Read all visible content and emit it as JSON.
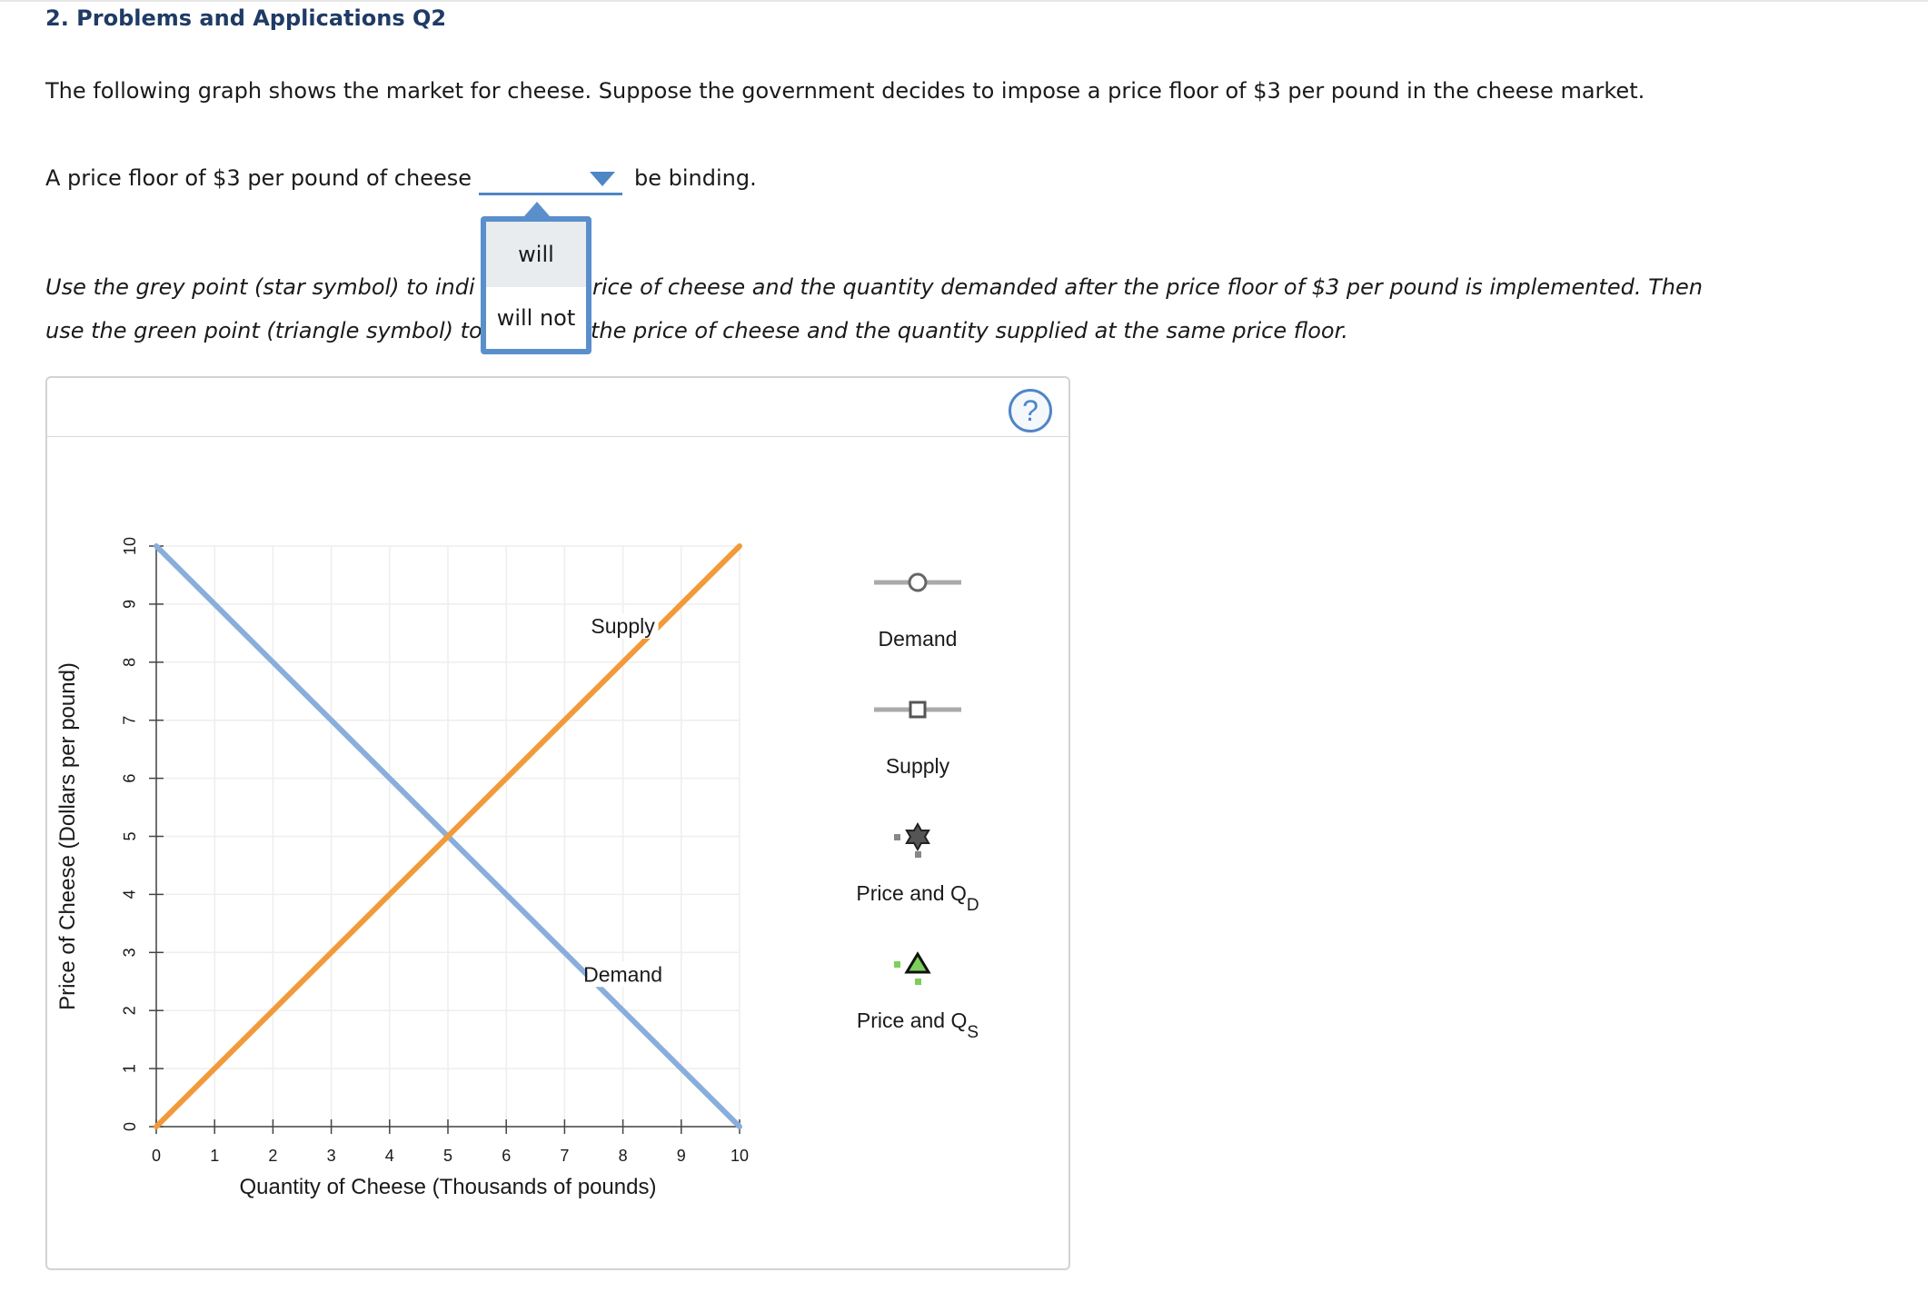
{
  "heading": "2. Problems and Applications Q2",
  "intro": "The following graph shows the market for cheese. Suppose the government decides to impose a price floor of $3 per pound in the cheese market.",
  "question": {
    "prefix": "A price floor of $3 per pound of cheese",
    "suffix": "be binding.",
    "selected": "",
    "options": [
      "will",
      "will not"
    ]
  },
  "instructions": {
    "line1_left": "Use the grey point (star symbol) to indi",
    "line1_right": "rice of cheese and the quantity demanded after the price floor of $3 per pound is implemented. Then",
    "line2_left": "use the green point (triangle symbol) to",
    "line2_right": "the price of cheese and the quantity supplied at the same price floor."
  },
  "help_label": "?",
  "legend": [
    {
      "label": "Demand",
      "marker": "circle",
      "color": "#aaaaaa"
    },
    {
      "label": "Supply",
      "marker": "square",
      "color": "#aaaaaa"
    },
    {
      "label": "Price and Q",
      "sub": "D",
      "marker": "star",
      "color": "#888888"
    },
    {
      "label": "Price and Q",
      "sub": "S",
      "marker": "triangle",
      "color": "#7ccf5a"
    }
  ],
  "colors": {
    "demand": "#8aaedb",
    "supply": "#f29a3a",
    "grid": "#eeeeee",
    "axis": "#444444"
  },
  "chart_data": {
    "type": "line",
    "xlabel": "Quantity of Cheese (Thousands of pounds)",
    "ylabel": "Price of Cheese (Dollars per pound)",
    "xlim": [
      0,
      10
    ],
    "ylim": [
      0,
      10
    ],
    "xticks": [
      0,
      1,
      2,
      3,
      4,
      5,
      6,
      7,
      8,
      9,
      10
    ],
    "yticks": [
      0,
      1,
      2,
      3,
      4,
      5,
      6,
      7,
      8,
      9,
      10
    ],
    "grid": true,
    "series": [
      {
        "name": "Demand",
        "x": [
          0,
          10
        ],
        "y": [
          10,
          0
        ],
        "label_at": [
          8,
          2.5
        ]
      },
      {
        "name": "Supply",
        "x": [
          0,
          10
        ],
        "y": [
          0,
          10
        ],
        "label_at": [
          8,
          8.5
        ]
      }
    ]
  }
}
